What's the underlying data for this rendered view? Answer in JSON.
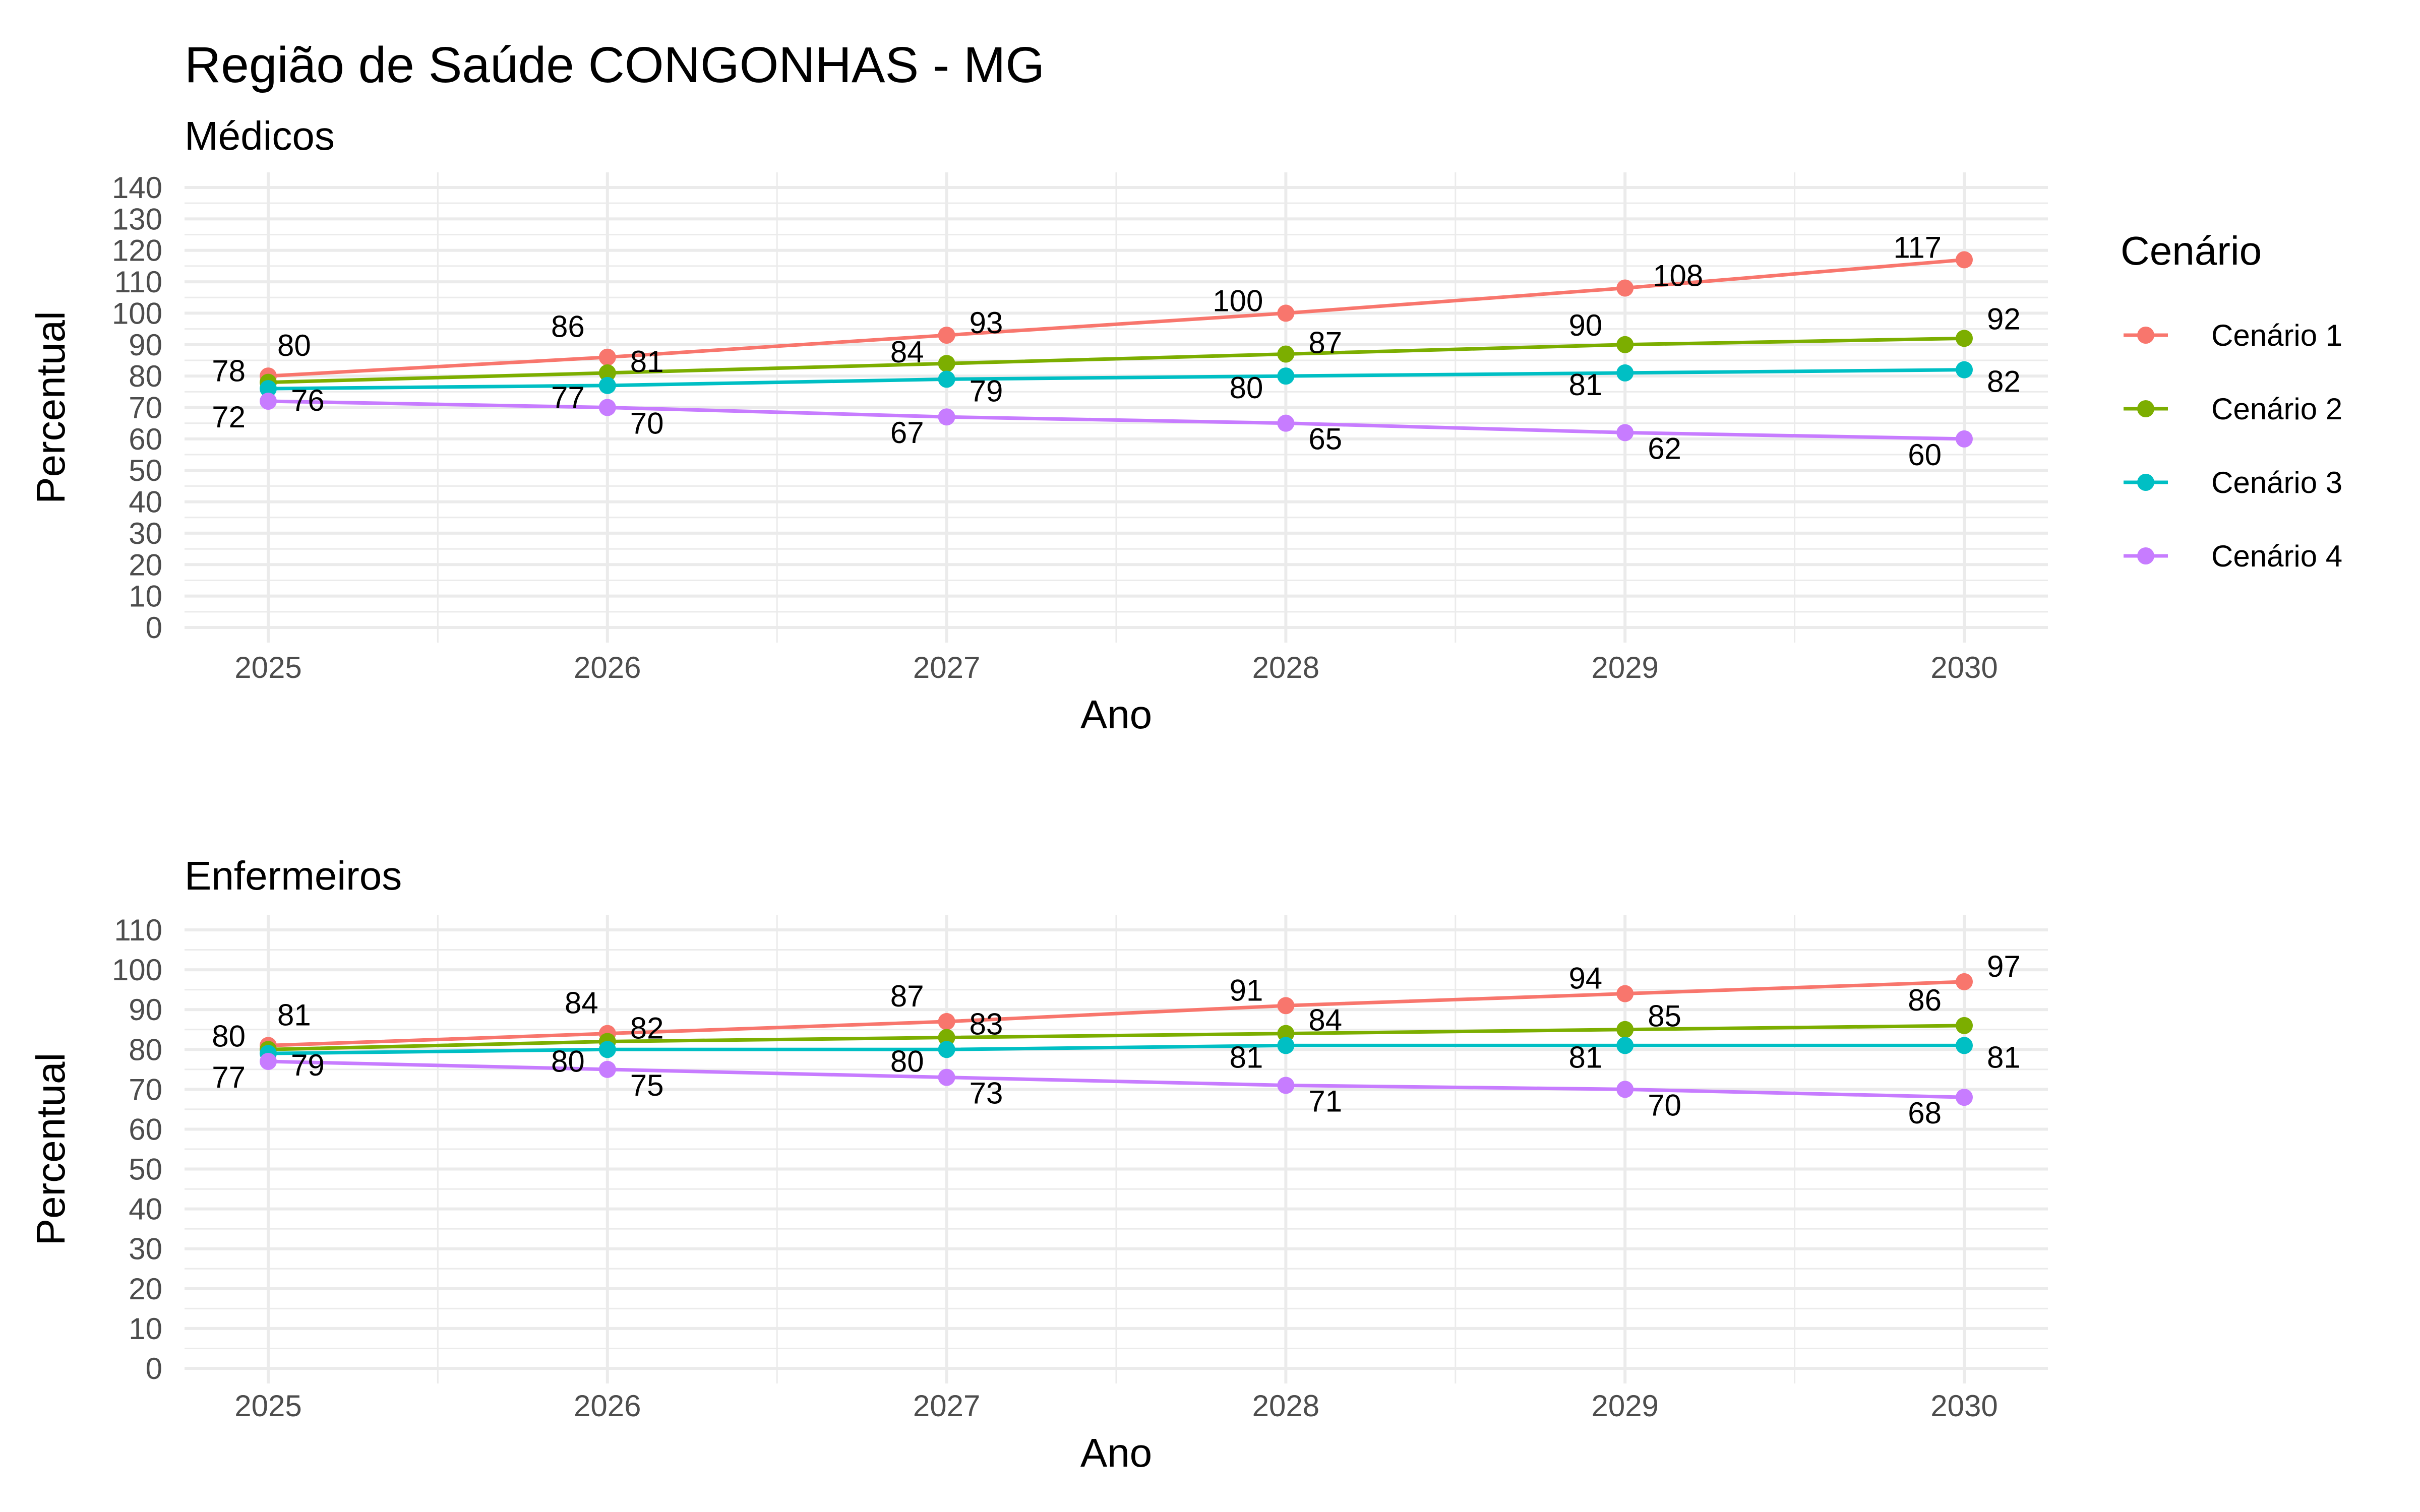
{
  "figure": {
    "title": "Região de Saúde CONGONHAS - MG"
  },
  "legend": {
    "title": "Cenário",
    "position": "right",
    "entries": [
      "Cenário 1",
      "Cenário 2",
      "Cenário 3",
      "Cenário 4"
    ]
  },
  "colors": {
    "Cenário 1": "#F8766D",
    "Cenário 2": "#7CAE00",
    "Cenário 3": "#00BFC4",
    "Cenário 4": "#C77CFF",
    "grid": "#EBEBEB",
    "tick_text": "#4D4D4D"
  },
  "chart_data": [
    {
      "type": "line",
      "subtitle": "Médicos",
      "xlabel": "Ano",
      "ylabel": "Percentual",
      "x": [
        2025,
        2026,
        2027,
        2028,
        2029,
        2030
      ],
      "ylim": [
        0,
        140
      ],
      "yticks": [
        0,
        10,
        20,
        30,
        40,
        50,
        60,
        70,
        80,
        90,
        100,
        110,
        120,
        130,
        140
      ],
      "grid": true,
      "series": [
        {
          "name": "Cenário 1",
          "values": [
            80,
            86,
            93,
            100,
            108,
            117
          ]
        },
        {
          "name": "Cenário 2",
          "values": [
            78,
            81,
            84,
            87,
            90,
            92
          ]
        },
        {
          "name": "Cenário 3",
          "values": [
            76,
            77,
            79,
            80,
            81,
            82
          ]
        },
        {
          "name": "Cenário 4",
          "values": [
            72,
            70,
            67,
            65,
            62,
            60
          ]
        }
      ]
    },
    {
      "type": "line",
      "subtitle": "Enfermeiros",
      "xlabel": "Ano",
      "ylabel": "Percentual",
      "x": [
        2025,
        2026,
        2027,
        2028,
        2029,
        2030
      ],
      "ylim": [
        0,
        110
      ],
      "yticks": [
        0,
        10,
        20,
        30,
        40,
        50,
        60,
        70,
        80,
        90,
        100,
        110
      ],
      "grid": true,
      "series": [
        {
          "name": "Cenário 1",
          "values": [
            81,
            84,
            87,
            91,
            94,
            97
          ]
        },
        {
          "name": "Cenário 2",
          "values": [
            80,
            82,
            83,
            84,
            85,
            86
          ]
        },
        {
          "name": "Cenário 3",
          "values": [
            79,
            80,
            80,
            81,
            81,
            81
          ]
        },
        {
          "name": "Cenário 4",
          "values": [
            77,
            75,
            73,
            71,
            70,
            68
          ]
        }
      ]
    }
  ]
}
